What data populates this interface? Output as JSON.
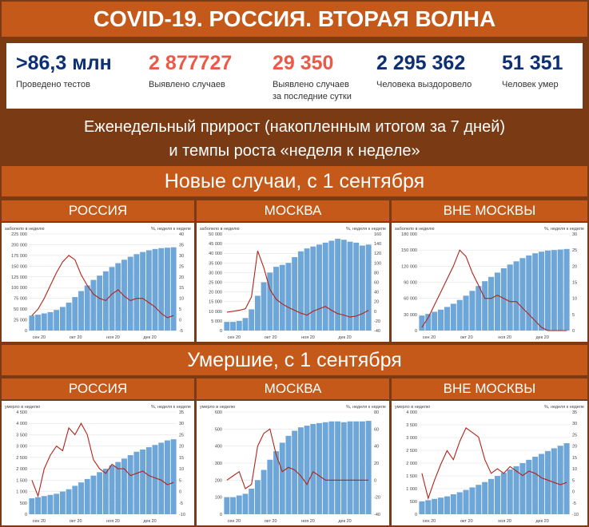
{
  "header": {
    "title": "COVID-19. РОССИЯ. ВТОРАЯ ВОЛНА"
  },
  "stats": [
    {
      "value": ">86,3 млн",
      "label": "Проведено тестов",
      "color": "#0d2f74"
    },
    {
      "value": "2 877727",
      "label": "Выявлено случаев",
      "color": "#ea5a47"
    },
    {
      "value": "29 350",
      "label": "Выявлено случаев\nза последние сутки",
      "color": "#ea5a47"
    },
    {
      "value": "2 295 362",
      "label": "Человека выздоровело",
      "color": "#0d2f74"
    },
    {
      "value": "51 351",
      "label": "Человек умер",
      "color": "#0d2f74"
    }
  ],
  "subtitle": {
    "line1": "Еженедельный прирост (накопленным итогом за 7 дней)",
    "line2": "и темпы роста «неделя к неделе»"
  },
  "sections": {
    "cases": "Новые случаи, с 1 сентября",
    "deaths": "Умершие, с 1 сентября"
  },
  "columns": [
    "РОССИЯ",
    "МОСКВА",
    "ВНЕ МОСКВЫ"
  ],
  "colors": {
    "bars": "#6fa6d8",
    "line": "#b42318",
    "grid": "#dddddd"
  },
  "chart_data": [
    {
      "type": "bar+line",
      "id": "cases-russia",
      "ylabel": "заболело в неделю",
      "y2label": "%, неделя к неделе",
      "yticks": [
        "225 000",
        "200 000",
        "175 000",
        "150 000",
        "125 000",
        "100 000",
        "75 000",
        "50 000",
        "25 000",
        "0"
      ],
      "y2ticks": [
        "40",
        "35",
        "30",
        "25",
        "20",
        "15",
        "10",
        "5",
        "0",
        "-5"
      ],
      "xticks": [
        "сен 20",
        "окт 20",
        "ноя 20",
        "дек 20"
      ],
      "ylim": [
        0,
        225000
      ],
      "y2lim": [
        -5,
        40
      ],
      "bars": [
        35000,
        37000,
        40000,
        43000,
        48000,
        55000,
        65000,
        78000,
        92000,
        105000,
        118000,
        128000,
        138000,
        148000,
        157000,
        165000,
        172000,
        178000,
        183000,
        187000,
        190000,
        192000,
        193000,
        194000
      ],
      "line": [
        2,
        5,
        10,
        16,
        22,
        27,
        30,
        28,
        21,
        16,
        12,
        10,
        9,
        12,
        14,
        11,
        9,
        10,
        10,
        8,
        6,
        3,
        1,
        2
      ]
    },
    {
      "type": "bar+line",
      "id": "cases-moscow",
      "ylabel": "заболело в неделю",
      "y2label": "%, неделя к неделе",
      "yticks": [
        "50 000",
        "45 000",
        "40 000",
        "35 000",
        "30 000",
        "25 000",
        "20 000",
        "15 000",
        "10 000",
        "5 000",
        "0"
      ],
      "y2ticks": [
        "160",
        "140",
        "120",
        "100",
        "80",
        "60",
        "40",
        "20",
        "0",
        "-20",
        "-40"
      ],
      "xticks": [
        "сен 20",
        "окт 20",
        "ноя 20",
        "дек 20"
      ],
      "ylim": [
        0,
        50000
      ],
      "y2lim": [
        -40,
        160
      ],
      "bars": [
        4500,
        4500,
        5000,
        6500,
        11000,
        18000,
        25000,
        30000,
        33000,
        34000,
        35000,
        38000,
        41000,
        42500,
        43500,
        44500,
        45500,
        46500,
        47500,
        47000,
        46000,
        45500,
        44000,
        44500
      ],
      "line": [
        -2,
        0,
        2,
        5,
        30,
        125,
        90,
        45,
        25,
        15,
        8,
        2,
        -4,
        -8,
        0,
        5,
        10,
        2,
        -5,
        -8,
        -12,
        -10,
        -5,
        2
      ]
    },
    {
      "type": "bar+line",
      "id": "cases-outside",
      "ylabel": "заболело в неделю",
      "y2label": "%, неделя к неделе",
      "yticks": [
        "180 000",
        "150 000",
        "120 000",
        "90 000",
        "60 000",
        "30 000",
        "0"
      ],
      "y2ticks": [
        "30",
        "25",
        "20",
        "15",
        "10",
        "5",
        "0"
      ],
      "xticks": [
        "сен 20",
        "окт 20",
        "ноя 20",
        "дек 20"
      ],
      "ylim": [
        0,
        180000
      ],
      "y2lim": [
        0,
        30
      ],
      "bars": [
        28000,
        31000,
        35000,
        39000,
        44000,
        50000,
        57000,
        65000,
        74000,
        83000,
        92000,
        100000,
        108000,
        116000,
        123000,
        129000,
        135000,
        140000,
        144000,
        147000,
        149000,
        150000,
        151000,
        152000
      ],
      "line": [
        1,
        4,
        8,
        12,
        16,
        20,
        25,
        23,
        18,
        14,
        10,
        10,
        11,
        10,
        9,
        9,
        7,
        5,
        3,
        1,
        0,
        0,
        0,
        0
      ]
    },
    {
      "type": "bar+line",
      "id": "deaths-russia",
      "ylabel": "умерло в неделю",
      "y2label": "%, неделя к неделе",
      "yticks": [
        "4 500",
        "4 000",
        "3 500",
        "3 000",
        "2 500",
        "2 000",
        "1 500",
        "1 000",
        "500",
        "0"
      ],
      "y2ticks": [
        "35",
        "30",
        "25",
        "20",
        "15",
        "10",
        "5",
        "0",
        "-5",
        "-10"
      ],
      "xticks": [
        "сен 20",
        "окт 20",
        "ноя 20",
        "дек 20"
      ],
      "ylim": [
        0,
        4500
      ],
      "y2lim": [
        -10,
        35
      ],
      "bars": [
        700,
        750,
        800,
        850,
        900,
        1000,
        1100,
        1250,
        1400,
        1550,
        1700,
        1850,
        2000,
        2150,
        2300,
        2450,
        2600,
        2750,
        2850,
        2950,
        3050,
        3150,
        3250,
        3300
      ],
      "line": [
        5,
        -2,
        10,
        16,
        20,
        18,
        28,
        25,
        30,
        25,
        14,
        10,
        8,
        12,
        10,
        10,
        7,
        8,
        9,
        7,
        6,
        5,
        3,
        4
      ]
    },
    {
      "type": "bar+line",
      "id": "deaths-moscow",
      "ylabel": "умерло в неделю",
      "y2label": "%, неделя к неделе",
      "yticks": [
        "600",
        "500",
        "400",
        "300",
        "200",
        "100",
        "0"
      ],
      "y2ticks": [
        "80",
        "60",
        "40",
        "20",
        "0",
        "-20",
        "-40"
      ],
      "xticks": [
        "сен 20",
        "окт 20",
        "ноя 20",
        "дек 20"
      ],
      "ylim": [
        0,
        600
      ],
      "y2lim": [
        -40,
        80
      ],
      "bars": [
        100,
        100,
        110,
        120,
        150,
        200,
        260,
        320,
        370,
        420,
        460,
        490,
        510,
        520,
        530,
        535,
        540,
        545,
        545,
        540,
        545,
        545,
        545,
        548
      ],
      "line": [
        0,
        5,
        10,
        -10,
        -5,
        40,
        55,
        60,
        30,
        10,
        15,
        12,
        5,
        -5,
        10,
        5,
        0,
        0,
        0,
        0,
        0,
        0,
        0,
        0
      ]
    },
    {
      "type": "bar+line",
      "id": "deaths-outside",
      "ylabel": "умерло в неделю",
      "y2label": "%, неделя к неделе",
      "yticks": [
        "4 000",
        "3 500",
        "3 000",
        "2 500",
        "2 000",
        "1 500",
        "1 000",
        "500",
        "0"
      ],
      "y2ticks": [
        "35",
        "30",
        "25",
        "20",
        "15",
        "10",
        "5",
        "0",
        "-5",
        "-10"
      ],
      "xticks": [
        "сен 20",
        "окт 20",
        "ноя 20",
        "дек 20"
      ],
      "ylim": [
        0,
        4000
      ],
      "y2lim": [
        -10,
        35
      ],
      "bars": [
        500,
        550,
        600,
        650,
        700,
        780,
        860,
        950,
        1050,
        1150,
        1260,
        1380,
        1500,
        1620,
        1750,
        1880,
        2000,
        2130,
        2250,
        2360,
        2470,
        2580,
        2680,
        2780
      ],
      "line": [
        8,
        -3,
        5,
        12,
        18,
        14,
        22,
        28,
        26,
        24,
        14,
        8,
        10,
        8,
        11,
        9,
        7,
        9,
        8,
        6,
        5,
        4,
        3,
        4
      ]
    }
  ]
}
